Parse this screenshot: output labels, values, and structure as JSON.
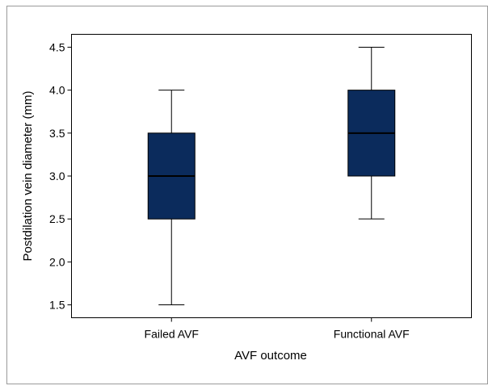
{
  "chart_data": {
    "type": "boxplot",
    "xlabel": "AVF outcome",
    "ylabel": "Postdilation vein diameter (mm)",
    "categories": [
      "Failed AVF",
      "Functional AVF"
    ],
    "boxes": [
      {
        "category": "Failed AVF",
        "min": 1.5,
        "q1": 2.5,
        "median": 3.0,
        "q3": 3.5,
        "max": 4.0
      },
      {
        "category": "Functional AVF",
        "min": 2.5,
        "q1": 3.0,
        "median": 3.5,
        "q3": 4.0,
        "max": 4.5
      }
    ],
    "ylim": [
      1.35,
      4.65
    ],
    "yticks": [
      1.5,
      2.0,
      2.5,
      3.0,
      3.5,
      4.0,
      4.5
    ],
    "ytick_labels": [
      "1.5",
      "2.0",
      "2.5",
      "3.0",
      "3.5",
      "4.0",
      "4.5"
    ],
    "grid": false,
    "box_color": "#0b2b5c",
    "median_color": "#000000"
  }
}
